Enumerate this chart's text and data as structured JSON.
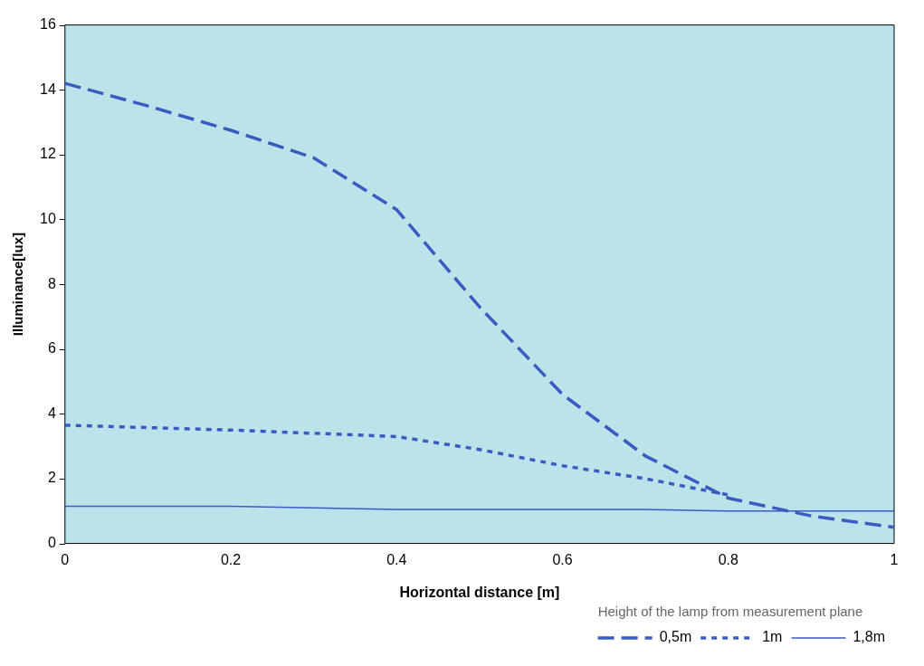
{
  "chart_data": {
    "type": "line",
    "xlabel": "Horizontal distance [m]",
    "ylabel": "Illuminance[lux]",
    "legend_title": "Height of the lamp from measurement plane",
    "legend": "bottom",
    "grid": false,
    "marker": "none",
    "xlim": [
      0,
      1
    ],
    "xticks": [
      0,
      0.2,
      0.4,
      0.6,
      0.8,
      1
    ],
    "ylim": [
      0,
      16
    ],
    "yticks": [
      0,
      2,
      4,
      6,
      8,
      10,
      12,
      14,
      16
    ],
    "series": [
      {
        "name": "0,5m",
        "color": "#3a5cc0",
        "line_style": "dashed",
        "x": [
          0,
          0.1,
          0.2,
          0.3,
          0.4,
          0.5,
          0.6,
          0.7,
          0.8,
          0.9,
          1
        ],
        "values": [
          14.2,
          13.5,
          12.75,
          11.9,
          10.3,
          7.3,
          4.6,
          2.7,
          1.4,
          0.85,
          0.5
        ]
      },
      {
        "name": "1m",
        "color": "#3a5cc0",
        "line_style": "dotted",
        "x": [
          0,
          0.2,
          0.4,
          0.5,
          0.6,
          0.7,
          0.8
        ],
        "values": [
          3.65,
          3.5,
          3.3,
          2.9,
          2.4,
          2.0,
          1.5
        ]
      },
      {
        "name": "1,8m",
        "color": "#3a5cc0",
        "line_style": "solid",
        "x": [
          0,
          0.2,
          0.4,
          0.7,
          0.8,
          1
        ],
        "values": [
          1.15,
          1.15,
          1.05,
          1.05,
          1.0,
          1.0
        ]
      }
    ]
  }
}
